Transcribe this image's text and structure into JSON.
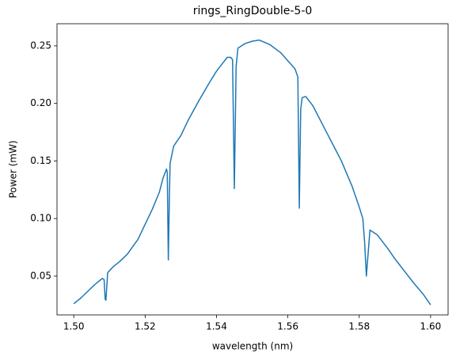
{
  "chart_data": {
    "type": "line",
    "title": "rings_RingDouble-5-0",
    "x_label": "wavelength (nm)",
    "y_label": "Power (mW)",
    "x": [
      1.5,
      1.502,
      1.504,
      1.506,
      1.508,
      1.5085,
      1.5088,
      1.509,
      1.5095,
      1.511,
      1.513,
      1.515,
      1.518,
      1.52,
      1.522,
      1.524,
      1.525,
      1.526,
      1.5262,
      1.5265,
      1.5268,
      1.527,
      1.528,
      1.53,
      1.532,
      1.535,
      1.538,
      1.54,
      1.542,
      1.543,
      1.544,
      1.5445,
      1.545,
      1.5455,
      1.546,
      1.548,
      1.55,
      1.552,
      1.555,
      1.558,
      1.56,
      1.562,
      1.5628,
      1.5632,
      1.5636,
      1.564,
      1.565,
      1.567,
      1.57,
      1.573,
      1.575,
      1.578,
      1.58,
      1.581,
      1.5815,
      1.582,
      1.5825,
      1.583,
      1.585,
      1.588,
      1.59,
      1.593,
      1.595,
      1.598,
      1.6
    ],
    "values": [
      0.026,
      0.031,
      0.037,
      0.043,
      0.048,
      0.047,
      0.03,
      0.029,
      0.053,
      0.058,
      0.063,
      0.069,
      0.082,
      0.095,
      0.108,
      0.123,
      0.135,
      0.143,
      0.14,
      0.064,
      0.12,
      0.148,
      0.163,
      0.172,
      0.185,
      0.202,
      0.218,
      0.228,
      0.236,
      0.24,
      0.24,
      0.238,
      0.126,
      0.232,
      0.248,
      0.252,
      0.254,
      0.255,
      0.251,
      0.244,
      0.237,
      0.23,
      0.223,
      0.109,
      0.195,
      0.205,
      0.206,
      0.198,
      0.18,
      0.162,
      0.15,
      0.128,
      0.11,
      0.1,
      0.08,
      0.05,
      0.07,
      0.09,
      0.086,
      0.074,
      0.065,
      0.053,
      0.045,
      0.034,
      0.025
    ],
    "color": "#1f77b4",
    "xlim": [
      1.4953,
      1.6049
    ],
    "ylim": [
      0.0163,
      0.2692
    ],
    "xticks": [
      {
        "value": 1.5,
        "label": "1.50"
      },
      1.52,
      1.54,
      1.56,
      1.58,
      {
        "value": 1.6,
        "label": "1.60"
      }
    ],
    "yticks": [
      0.05,
      {
        "value": 0.1,
        "label": "0.10"
      },
      0.15,
      {
        "value": 0.2,
        "label": "0.20"
      },
      0.25
    ]
  }
}
